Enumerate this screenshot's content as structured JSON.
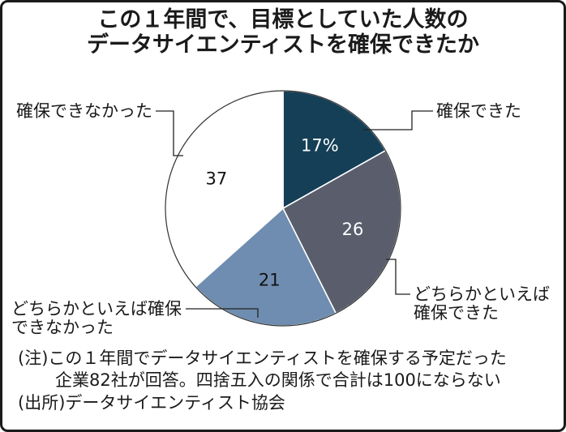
{
  "chart_data": {
    "type": "pie",
    "title": [
      "この１年間で、目標としていた人数の",
      "データサイエンティストを確保できたか"
    ],
    "slices": [
      {
        "label": [
          "確保できた"
        ],
        "value": 17,
        "value_label": "17%",
        "color": "#153f57",
        "value_color": "#ffffff"
      },
      {
        "label": [
          "どちらかといえば",
          "確保できた"
        ],
        "value": 26,
        "value_label": "26",
        "color": "#5a5e6c",
        "value_color": "#ffffff"
      },
      {
        "label": [
          "どちらかといえば確保",
          "できなかった"
        ],
        "value": 21,
        "value_label": "21",
        "color": "#6e8db0",
        "value_color": "#111111"
      },
      {
        "label": [
          "確保できなかった"
        ],
        "value": 37,
        "value_label": "37",
        "color": "#ffffff",
        "value_color": "#111111"
      }
    ]
  },
  "notes": [
    "(注)この１年間でデータサイエンティストを確保する予定だった",
    "企業82社が回答。四捨五入の関係で合計は100にならない"
  ],
  "source": "(出所)データサイエンティスト協会"
}
